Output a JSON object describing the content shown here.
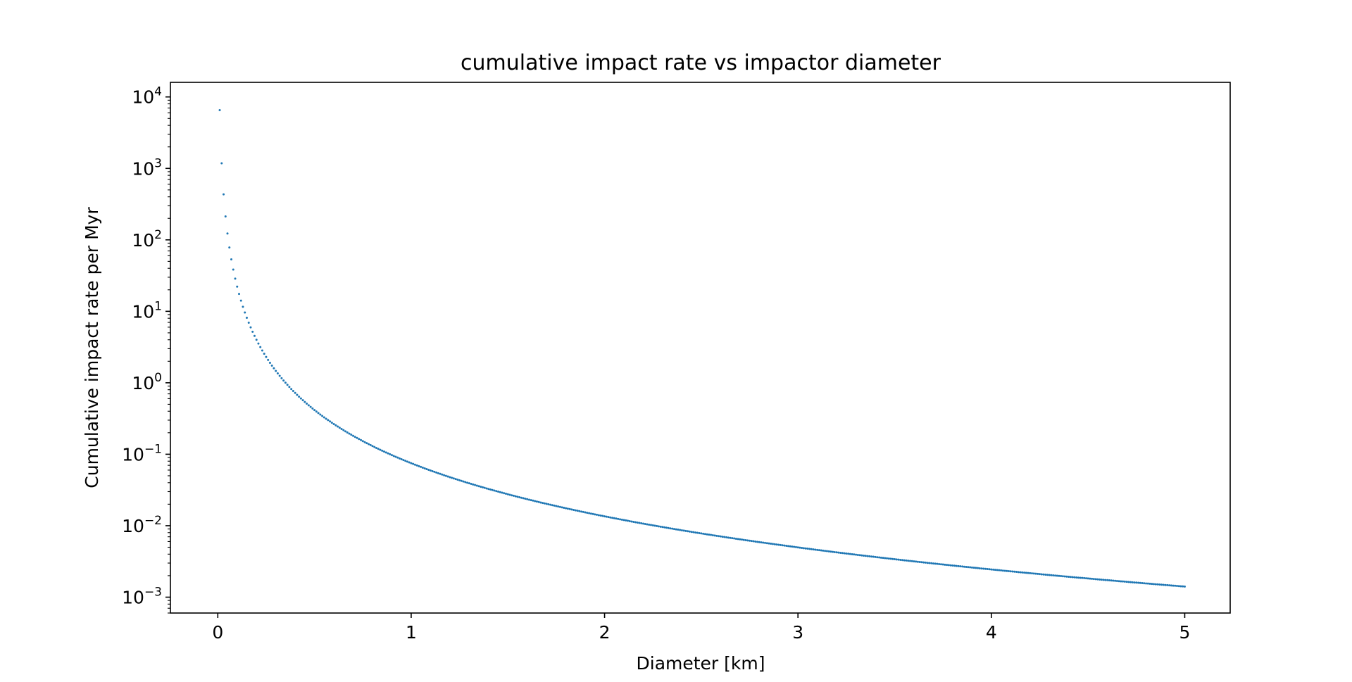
{
  "chart_data": {
    "type": "scatter",
    "title": "cumulative impact rate vs impactor diameter",
    "xlabel": "Diameter [km]",
    "ylabel": "Cumulative impact rate per Myr",
    "xlim": [
      -0.245,
      5.235
    ],
    "ylim": [
      0.0006,
      16000
    ],
    "yscale": "log",
    "grid": false,
    "marker_color": "#1f77b4",
    "xticks": [
      {
        "value": 0,
        "label": "0"
      },
      {
        "value": 1,
        "label": "1"
      },
      {
        "value": 2,
        "label": "2"
      },
      {
        "value": 3,
        "label": "3"
      },
      {
        "value": 4,
        "label": "4"
      },
      {
        "value": 5,
        "label": "5"
      }
    ],
    "yticks": [
      {
        "value": 0.001,
        "base": "10",
        "exp": "−3"
      },
      {
        "value": 0.01,
        "base": "10",
        "exp": "−2"
      },
      {
        "value": 0.1,
        "base": "10",
        "exp": "−1"
      },
      {
        "value": 1,
        "base": "10",
        "exp": "0"
      },
      {
        "value": 10,
        "base": "10",
        "exp": "1"
      },
      {
        "value": 100,
        "base": "10",
        "exp": "2"
      },
      {
        "value": 1000,
        "base": "10",
        "exp": "3"
      },
      {
        "value": 10000,
        "base": "10",
        "exp": "4"
      }
    ],
    "series": [
      {
        "x_start": 0.01,
        "x_end": 5.0,
        "n_points": 500,
        "power_law_reference_point": [
          1.0,
          0.075
        ],
        "power_law_exponent": -2.47
      }
    ]
  }
}
